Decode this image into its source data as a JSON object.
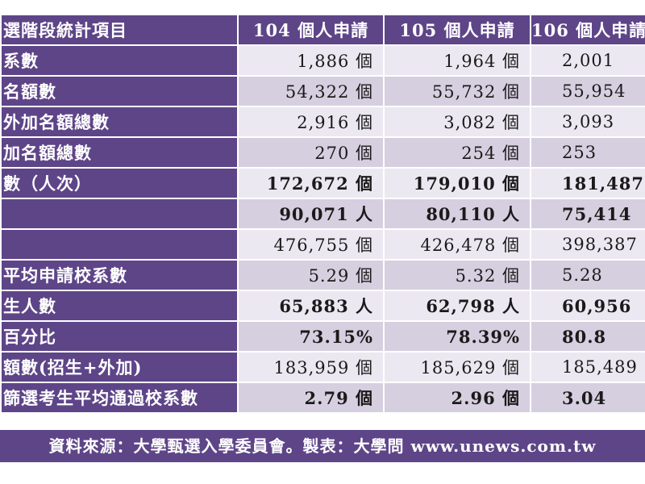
{
  "header": {
    "label": "選階段統計項目",
    "columns": [
      "104 個人申請",
      "105 個人申請",
      "106 個人申請"
    ]
  },
  "rows": [
    {
      "label": "系數",
      "v104": "1,886 個",
      "v105": "1,964 個",
      "v106": "2,001",
      "bold": false
    },
    {
      "label": "名額數",
      "v104": "54,322 個",
      "v105": "55,732 個",
      "v106": "55,954",
      "bold": false
    },
    {
      "label": "外加名額總數",
      "v104": "2,916 個",
      "v105": "3,082 個",
      "v106": "3,093",
      "bold": false
    },
    {
      "label": "加名額總數",
      "v104": "270 個",
      "v105": "254 個",
      "v106": "253",
      "bold": false
    },
    {
      "label": "數（人次）",
      "v104": "172,672 個",
      "v105": "179,010 個",
      "v106": "181,487",
      "bold": true
    },
    {
      "label": "",
      "v104": "90,071 人",
      "v105": "80,110 人",
      "v106": "75,414",
      "bold": true
    },
    {
      "label": "",
      "v104": "476,755 個",
      "v105": "426,478 個",
      "v106": "398,387",
      "bold": false
    },
    {
      "label": "平均申請校系數",
      "v104": "5.29 個",
      "v105": "5.32 個",
      "v106": "5.28",
      "bold": false
    },
    {
      "label": "生人數",
      "v104": "65,883 人",
      "v105": "62,798 人",
      "v106": "60,956",
      "bold": true
    },
    {
      "label": "百分比",
      "v104": "73.15%",
      "v105": "78.39%",
      "v106": "80.8",
      "bold": true
    },
    {
      "label": "額數(招生+外加)",
      "v104": "183,959 個",
      "v105": "185,629 個",
      "v106": "185,489",
      "bold": false
    },
    {
      "label": "篩選考生平均通過校系數",
      "v104": "2.79 個",
      "v105": "2.96 個",
      "v106": "3.04",
      "bold": true
    }
  ],
  "footer": {
    "source": "資料來源：大學甄選入學委員會。製表：大學問 www.unews.com.tw"
  }
}
